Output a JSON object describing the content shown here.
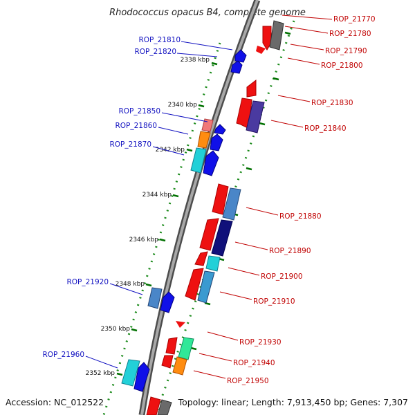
{
  "title": "Rhodococcus opacus B4, complete genome",
  "footer": {
    "accession": "Accession: NC_012522",
    "summary": "Topology: linear; Length: 7,913,450 bp; Genes: 7,307"
  },
  "colors": {
    "left_label": "#1010c0",
    "right_label": "#c00000",
    "backbone": "#7a7a7a",
    "tick": "#007000",
    "dot": "#1a8a1a"
  },
  "ticks": [
    {
      "label": "2338 kbp"
    },
    {
      "label": "2340 kbp"
    },
    {
      "label": "2342 kbp"
    },
    {
      "label": "2344 kbp"
    },
    {
      "label": "2346 kbp"
    },
    {
      "label": "2348 kbp"
    },
    {
      "label": "2350 kbp"
    },
    {
      "label": "2352 kbp"
    }
  ],
  "left_labels": [
    {
      "name": "ROP_21810"
    },
    {
      "name": "ROP_21820"
    },
    {
      "name": "ROP_21850"
    },
    {
      "name": "ROP_21860"
    },
    {
      "name": "ROP_21870"
    },
    {
      "name": "ROP_21920"
    },
    {
      "name": "ROP_21960"
    }
  ],
  "right_labels": [
    {
      "name": "ROP_21770"
    },
    {
      "name": "ROP_21780"
    },
    {
      "name": "ROP_21790"
    },
    {
      "name": "ROP_21800"
    },
    {
      "name": "ROP_21830"
    },
    {
      "name": "ROP_21840"
    },
    {
      "name": "ROP_21880"
    },
    {
      "name": "ROP_21890"
    },
    {
      "name": "ROP_21900"
    },
    {
      "name": "ROP_21910"
    },
    {
      "name": "ROP_21930"
    },
    {
      "name": "ROP_21940"
    },
    {
      "name": "ROP_21950"
    }
  ]
}
